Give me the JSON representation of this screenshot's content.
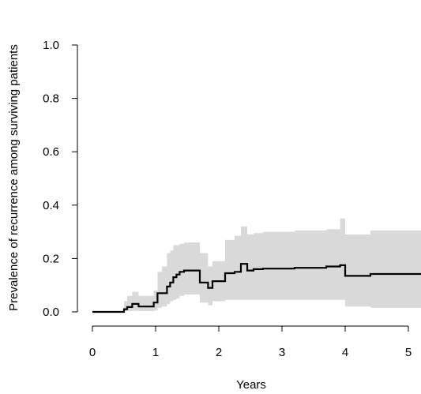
{
  "chart_data": {
    "type": "line",
    "title": "",
    "xlabel": "Years",
    "ylabel": "Prevalence of recurrence among surviving patients",
    "xlim": [
      0,
      5.2
    ],
    "ylim": [
      0,
      1.0
    ],
    "x_ticks": [
      {
        "value": 0,
        "label": "0"
      },
      {
        "value": 1,
        "label": "1"
      },
      {
        "value": 2,
        "label": "2"
      },
      {
        "value": 3,
        "label": "3"
      },
      {
        "value": 4,
        "label": "4"
      },
      {
        "value": 5,
        "label": "5"
      }
    ],
    "y_ticks": [
      {
        "value": 0.0,
        "label": "0.0"
      },
      {
        "value": 0.2,
        "label": "0.2"
      },
      {
        "value": 0.4,
        "label": "0.4"
      },
      {
        "value": 0.6,
        "label": "0.6"
      },
      {
        "value": 0.8,
        "label": "0.8"
      },
      {
        "value": 1.0,
        "label": "1.0"
      }
    ],
    "grid": false,
    "legend": "none",
    "colors": {
      "line": "#000000",
      "band": "#d9d9d9"
    },
    "series": [
      {
        "step": true,
        "x": [
          0.0,
          0.5,
          0.55,
          0.63,
          0.73,
          0.97,
          1.03,
          1.1,
          1.18,
          1.23,
          1.28,
          1.33,
          1.38,
          1.45,
          1.58,
          1.7,
          1.83,
          1.9,
          2.1,
          2.25,
          2.35,
          2.45,
          2.55,
          2.7,
          3.2,
          3.7,
          3.92,
          4.0,
          4.2,
          4.4,
          5.2
        ],
        "y": [
          0.0,
          0.01,
          0.018,
          0.03,
          0.02,
          0.035,
          0.07,
          0.07,
          0.095,
          0.11,
          0.13,
          0.14,
          0.15,
          0.155,
          0.155,
          0.11,
          0.09,
          0.115,
          0.145,
          0.15,
          0.18,
          0.155,
          0.16,
          0.162,
          0.165,
          0.17,
          0.175,
          0.135,
          0.135,
          0.142,
          0.142
        ]
      }
    ],
    "confidence_band": {
      "x": [
        0.0,
        0.5,
        0.55,
        0.63,
        0.73,
        0.97,
        1.03,
        1.1,
        1.18,
        1.23,
        1.28,
        1.33,
        1.38,
        1.45,
        1.58,
        1.7,
        1.83,
        1.9,
        2.1,
        2.25,
        2.35,
        2.45,
        2.55,
        2.7,
        3.2,
        3.7,
        3.92,
        4.0,
        4.2,
        4.4,
        5.2
      ],
      "lower": [
        0.0,
        0.002,
        0.003,
        0.004,
        0.003,
        0.005,
        0.015,
        0.02,
        0.03,
        0.04,
        0.045,
        0.05,
        0.06,
        0.065,
        0.065,
        0.035,
        0.025,
        0.04,
        0.045,
        0.045,
        0.045,
        0.045,
        0.045,
        0.045,
        0.045,
        0.045,
        0.045,
        0.02,
        0.02,
        0.015,
        0.015
      ],
      "upper": [
        0.0,
        0.04,
        0.06,
        0.075,
        0.06,
        0.08,
        0.15,
        0.17,
        0.22,
        0.23,
        0.25,
        0.25,
        0.255,
        0.26,
        0.26,
        0.22,
        0.17,
        0.19,
        0.27,
        0.285,
        0.32,
        0.29,
        0.295,
        0.3,
        0.305,
        0.31,
        0.35,
        0.29,
        0.29,
        0.305,
        0.305
      ]
    }
  }
}
